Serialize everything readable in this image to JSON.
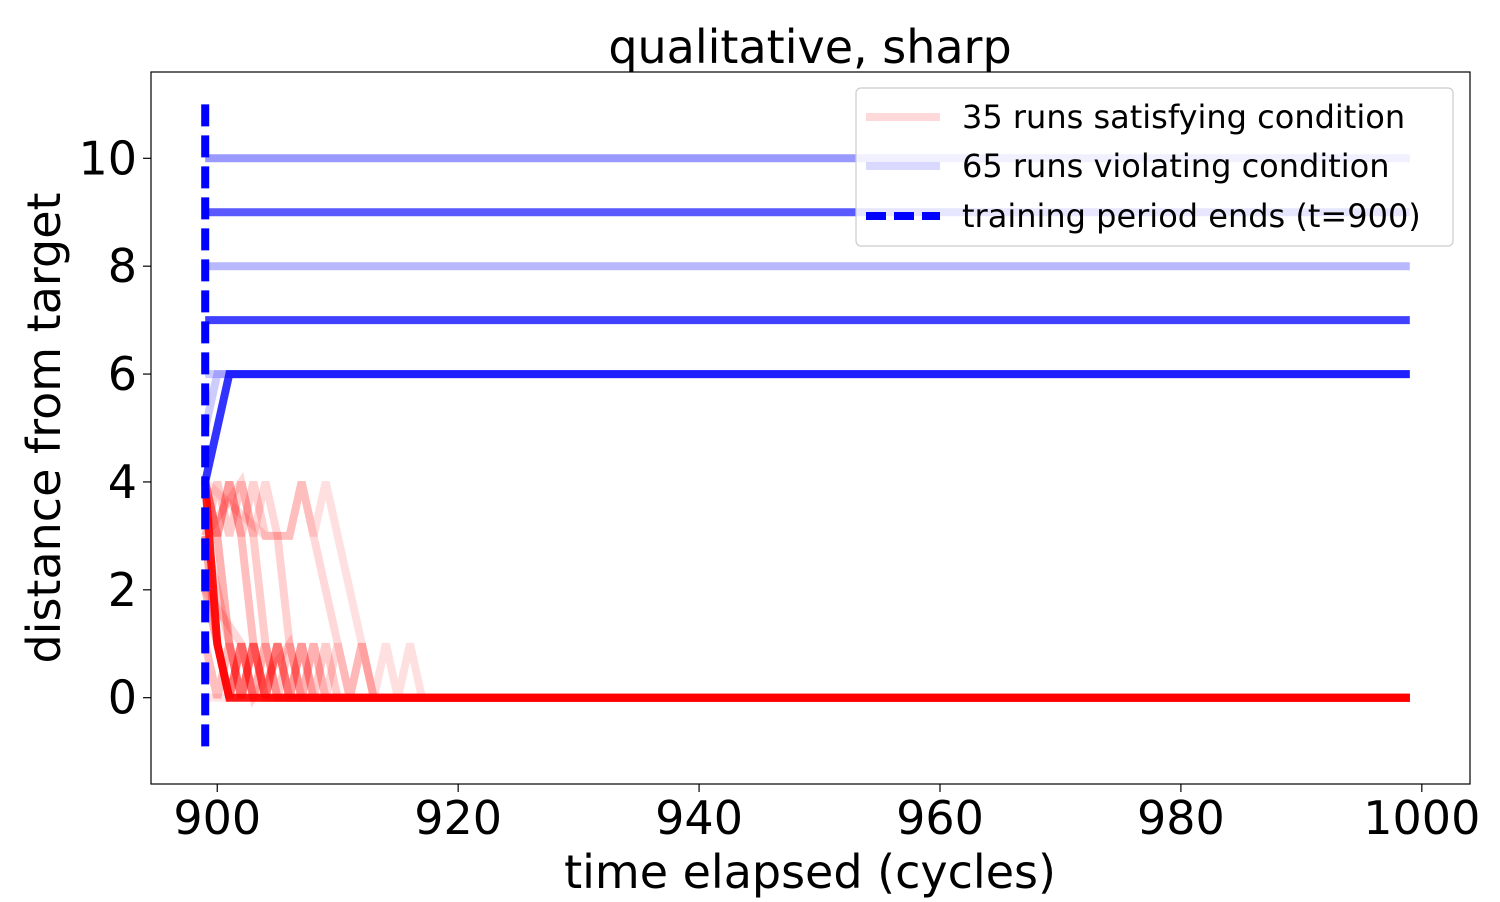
{
  "chart_data": {
    "type": "line",
    "title": "qualitative, sharp",
    "xlabel": "time elapsed (cycles)",
    "ylabel": "distance from target",
    "xlim": [
      894.5,
      1004
    ],
    "ylim": [
      -1.6,
      11.6
    ],
    "xticks": [
      900,
      920,
      940,
      960,
      980,
      1000
    ],
    "yticks": [
      0,
      2,
      4,
      6,
      8,
      10
    ],
    "grid": false,
    "legend_position": "top-right",
    "colors": {
      "satisfying": "#ff0000",
      "violating": "#0000ff",
      "training_end": "#0000ff"
    },
    "legend": {
      "satisfying": "35 runs satisfying condition",
      "violating": "65 runs violating condition",
      "training_end": "training period ends (t=900)"
    },
    "training_end": {
      "x": 899,
      "y_range": [
        -1,
        11
      ]
    },
    "series": [
      {
        "group": "violating",
        "opacity": 0.4,
        "points": [
          [
            899,
            10
          ],
          [
            999,
            10
          ]
        ]
      },
      {
        "group": "violating",
        "opacity": 0.65,
        "points": [
          [
            899,
            9
          ],
          [
            999,
            9
          ]
        ]
      },
      {
        "group": "violating",
        "opacity": 0.28,
        "points": [
          [
            899,
            8
          ],
          [
            999,
            8
          ]
        ]
      },
      {
        "group": "violating",
        "opacity": 0.75,
        "points": [
          [
            899,
            7
          ],
          [
            999,
            7
          ]
        ]
      },
      {
        "group": "violating",
        "opacity": 0.8,
        "points": [
          [
            899,
            4
          ],
          [
            901,
            6
          ],
          [
            999,
            6
          ]
        ]
      },
      {
        "group": "violating",
        "opacity": 0.2,
        "points": [
          [
            899,
            5
          ],
          [
            900,
            6
          ],
          [
            999,
            6
          ]
        ]
      },
      {
        "group": "violating",
        "opacity": 0.2,
        "points": [
          [
            899,
            6
          ],
          [
            999,
            6
          ]
        ]
      },
      {
        "group": "satisfying",
        "opacity": 0.9,
        "points": [
          [
            899,
            4
          ],
          [
            900,
            1
          ],
          [
            901,
            0
          ],
          [
            999,
            0
          ]
        ]
      },
      {
        "group": "satisfying",
        "opacity": 0.35,
        "points": [
          [
            899,
            3
          ],
          [
            900,
            1
          ],
          [
            901,
            0
          ],
          [
            902,
            1
          ],
          [
            903,
            0
          ],
          [
            999,
            0
          ]
        ]
      },
      {
        "group": "satisfying",
        "opacity": 0.3,
        "points": [
          [
            899,
            4
          ],
          [
            900,
            3
          ],
          [
            901,
            1
          ],
          [
            902,
            0
          ],
          [
            903,
            1
          ],
          [
            904,
            0
          ],
          [
            999,
            0
          ]
        ]
      },
      {
        "group": "satisfying",
        "opacity": 0.25,
        "points": [
          [
            899,
            4
          ],
          [
            900,
            3
          ],
          [
            901,
            4
          ],
          [
            902,
            3
          ],
          [
            903,
            1
          ],
          [
            904,
            0
          ],
          [
            905,
            1
          ],
          [
            906,
            0
          ],
          [
            999,
            0
          ]
        ]
      },
      {
        "group": "satisfying",
        "opacity": 0.2,
        "points": [
          [
            899,
            3
          ],
          [
            900,
            4
          ],
          [
            901,
            3
          ],
          [
            902,
            4
          ],
          [
            903,
            3
          ],
          [
            904,
            1
          ],
          [
            905,
            0
          ],
          [
            906,
            1
          ],
          [
            907,
            0
          ],
          [
            999,
            0
          ]
        ]
      },
      {
        "group": "satisfying",
        "opacity": 0.18,
        "points": [
          [
            899,
            4
          ],
          [
            900,
            3
          ],
          [
            901,
            4
          ],
          [
            902,
            3
          ],
          [
            903,
            4
          ],
          [
            904,
            3
          ],
          [
            905,
            3
          ],
          [
            906,
            1
          ],
          [
            907,
            0
          ],
          [
            908,
            1
          ],
          [
            909,
            0
          ],
          [
            999,
            0
          ]
        ]
      },
      {
        "group": "satisfying",
        "opacity": 0.15,
        "points": [
          [
            899,
            3
          ],
          [
            902,
            4
          ],
          [
            903,
            3
          ],
          [
            904,
            4
          ],
          [
            905,
            3
          ],
          [
            906,
            3
          ],
          [
            907,
            4
          ],
          [
            908,
            3
          ],
          [
            910,
            1
          ],
          [
            911,
            0
          ],
          [
            912,
            1
          ],
          [
            913,
            0
          ],
          [
            999,
            0
          ]
        ]
      },
      {
        "group": "satisfying",
        "opacity": 0.12,
        "points": [
          [
            899,
            4
          ],
          [
            904,
            3
          ],
          [
            905,
            3
          ],
          [
            906,
            3
          ],
          [
            907,
            4
          ],
          [
            908,
            3
          ],
          [
            909,
            4
          ],
          [
            910,
            3
          ],
          [
            912,
            1
          ],
          [
            913,
            0
          ],
          [
            914,
            1
          ],
          [
            915,
            0
          ],
          [
            916,
            1
          ],
          [
            917,
            0
          ],
          [
            999,
            0
          ]
        ]
      },
      {
        "group": "satisfying",
        "opacity": 0.3,
        "points": [
          [
            899,
            2
          ],
          [
            900,
            1
          ],
          [
            901,
            0
          ],
          [
            902,
            1
          ],
          [
            903,
            0
          ],
          [
            904,
            1
          ],
          [
            905,
            0
          ],
          [
            999,
            0
          ]
        ]
      },
      {
        "group": "satisfying",
        "opacity": 0.25,
        "points": [
          [
            899,
            1
          ],
          [
            900,
            0
          ],
          [
            901,
            1
          ],
          [
            902,
            0
          ],
          [
            903,
            1
          ],
          [
            904,
            0
          ],
          [
            905,
            1
          ],
          [
            906,
            0
          ],
          [
            907,
            1
          ],
          [
            908,
            0
          ],
          [
            999,
            0
          ]
        ]
      },
      {
        "group": "satisfying",
        "opacity": 0.2,
        "points": [
          [
            899,
            3
          ],
          [
            901,
            1
          ],
          [
            902,
            0
          ],
          [
            903,
            1
          ],
          [
            904,
            0
          ],
          [
            905,
            1
          ],
          [
            906,
            0
          ],
          [
            907,
            1
          ],
          [
            908,
            0
          ],
          [
            909,
            1
          ],
          [
            910,
            0
          ],
          [
            999,
            0
          ]
        ]
      },
      {
        "group": "satisfying",
        "opacity": 0.15,
        "points": [
          [
            899,
            2
          ],
          [
            902,
            1
          ],
          [
            903,
            0
          ],
          [
            906,
            1
          ],
          [
            907,
            0
          ],
          [
            908,
            1
          ],
          [
            909,
            0
          ],
          [
            910,
            1
          ],
          [
            911,
            0
          ],
          [
            912,
            1
          ],
          [
            913,
            0
          ],
          [
            999,
            0
          ]
        ]
      },
      {
        "group": "satisfying",
        "opacity": 0.1,
        "points": [
          [
            899,
            0
          ],
          [
            999,
            0
          ]
        ]
      }
    ]
  }
}
